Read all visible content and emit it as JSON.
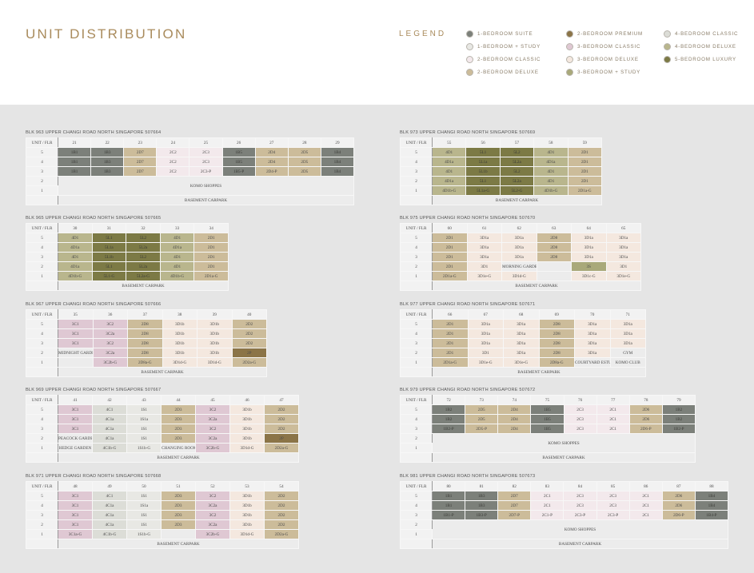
{
  "page": {
    "title": "UNIT DISTRIBUTION"
  },
  "legend": {
    "label": "LEGEND",
    "items": [
      {
        "label": "1-BEDROOM SUITE",
        "color": "#7c807a"
      },
      {
        "label": "1-BEDROOM + STUDY",
        "color": "#e8e8e4"
      },
      {
        "label": "2-BEDROOM CLASSIC",
        "color": "#f3e9ec"
      },
      {
        "label": "2-BEDROOM DELUXE",
        "color": "#ccbc9a"
      },
      {
        "label": "2-BEDROOM PREMIUM",
        "color": "#8b7447"
      },
      {
        "label": "3-BEDROOM CLASSIC",
        "color": "#dfc8d3"
      },
      {
        "label": "3-BEDROOM DELUXE",
        "color": "#f4e8df"
      },
      {
        "label": "3-BEDROOM + STUDY",
        "color": "#a9a97a"
      },
      {
        "label": "4-BEDROOM CLASSIC",
        "color": "#dcddd7"
      },
      {
        "label": "4-BEDROOM DELUXE",
        "color": "#b9b68d"
      },
      {
        "label": "5-BEDROOM LUXURY",
        "color": "#7c7a45"
      }
    ]
  },
  "header_label": "UNIT / FLR",
  "blocks": [
    {
      "title": "BLK 963 UPPER CHANGI ROAD NORTH SINGAPORE 507664",
      "units": [
        "21",
        "22",
        "23",
        "24",
        "25",
        "26",
        "27",
        "28",
        "29"
      ],
      "rows": [
        {
          "floor": "5",
          "cells": [
            "1B1",
            "1B3",
            "2D7",
            "2C2",
            "2C3",
            "1B5",
            "2D4",
            "2D5",
            "1B4"
          ]
        },
        {
          "floor": "4",
          "cells": [
            "1B1",
            "1B3",
            "2D7",
            "2C2",
            "2C3",
            "1B5",
            "2D4",
            "2D5",
            "1B4"
          ]
        },
        {
          "floor": "3",
          "cells": [
            "1B1",
            "1B3",
            "2D7",
            "2C2",
            "2C3-P",
            "1B5-P",
            "2D4-P",
            "2D5",
            "1B4"
          ]
        }
      ],
      "shoppes": {
        "floors": [
          "2",
          "1"
        ],
        "label": "KOMO SHOPPES"
      },
      "carpark": "BASEMENT CARPARK"
    },
    {
      "title": "BLK 965 UPPER CHANGI ROAD NORTH SINGAPORE 507665",
      "units": [
        "30",
        "31",
        "32",
        "33",
        "34"
      ],
      "rows": [
        {
          "floor": "5",
          "cells": [
            "4D1",
            "5L1",
            "5L2",
            "4D1",
            "2D1"
          ]
        },
        {
          "floor": "4",
          "cells": [
            "4D1a",
            "5L1a",
            "5L2a",
            "4D1a",
            "2D1"
          ]
        },
        {
          "floor": "3",
          "cells": [
            "4D1",
            "5L1b",
            "5L2",
            "4D1",
            "2D1"
          ]
        },
        {
          "floor": "2",
          "cells": [
            "4D1a",
            "5L1",
            "5L2a",
            "4D1",
            "2D1"
          ]
        },
        {
          "floor": "1",
          "cells": [
            "4D1b-G",
            "5L1-G",
            "5L2a-G",
            "4D1b-G",
            "2D1a-G"
          ]
        }
      ],
      "carpark": "BASEMENT CARPARK"
    },
    {
      "title": "BLK 967 UPPER CHANGI ROAD NORTH SINGAPORE 507666",
      "units": [
        "35",
        "36",
        "37",
        "38",
        "39",
        "40"
      ],
      "rows": [
        {
          "floor": "5",
          "cells": [
            "3C1",
            "3C2",
            "2D8",
            "3D1b",
            "3D1b",
            "2D2"
          ]
        },
        {
          "floor": "4",
          "cells": [
            "3C1",
            "3C2a",
            "2D8",
            "3D1b",
            "3D1b",
            "2D2"
          ]
        },
        {
          "floor": "3",
          "cells": [
            "3C1",
            "3C2",
            "2D8",
            "3D1b",
            "3D1b",
            "2D2"
          ]
        },
        {
          "floor": "2",
          "cells": [
            "MIDNIGHT GARDEN",
            "3C2a",
            "2D8",
            "3D1b",
            "3D1b",
            "2P"
          ]
        },
        {
          "floor": "1",
          "cells": [
            "",
            "3C2b-G",
            "2D8a-G",
            "3D1d-G",
            "3D1d-G",
            "2D2a-G"
          ]
        }
      ],
      "carpark": "BASEMENT CARPARK"
    },
    {
      "title": "BLK 969 UPPER CHANGI ROAD NORTH SINGAPORE 507667",
      "units": [
        "41",
        "42",
        "43",
        "44",
        "45",
        "46",
        "47"
      ],
      "rows": [
        {
          "floor": "5",
          "cells": [
            "3C1",
            "4C1",
            "1S1",
            "2D3",
            "3C2",
            "3D1b",
            "2D2"
          ]
        },
        {
          "floor": "4",
          "cells": [
            "3C1",
            "4C1a",
            "1S1a",
            "2D3",
            "3C2a",
            "3D1b",
            "2D2"
          ]
        },
        {
          "floor": "3",
          "cells": [
            "3C1",
            "4C1a",
            "1S1",
            "2D3",
            "3C2",
            "3D1b",
            "2D2"
          ]
        },
        {
          "floor": "2",
          "cells": [
            "PEACOCK GARDEN",
            "4C1a",
            "1S1",
            "2D3",
            "3C2a",
            "3D1b",
            "2P"
          ]
        },
        {
          "floor": "1",
          "cells": [
            "HEDGE GARDEN",
            "4C1b-G",
            "1S1b-G",
            "CHANGING ROOM",
            "3C2b-G",
            "3D1d-G",
            "2D2a-G"
          ]
        }
      ],
      "carpark": "BASEMENT CARPARK"
    },
    {
      "title": "BLK 971 UPPER CHANGI ROAD NORTH SINGAPORE 507668",
      "units": [
        "48",
        "49",
        "50",
        "51",
        "52",
        "53",
        "54"
      ],
      "rows": [
        {
          "floor": "5",
          "cells": [
            "3C1",
            "4C1",
            "1S1",
            "2D3",
            "3C2",
            "3D1b",
            "2D2"
          ]
        },
        {
          "floor": "4",
          "cells": [
            "3C1",
            "4C1a",
            "1S1a",
            "2D3",
            "3C2a",
            "3D1b",
            "2D2"
          ]
        },
        {
          "floor": "3",
          "cells": [
            "3C1",
            "4C1a",
            "1S1",
            "2D3",
            "3C2",
            "3D1b",
            "2D2"
          ]
        },
        {
          "floor": "2",
          "cells": [
            "3C1",
            "4C1a",
            "1S1",
            "2D3",
            "3C2a",
            "3D1b",
            "2D2"
          ]
        },
        {
          "floor": "1",
          "cells": [
            "3C1a-G",
            "4C1b-G",
            "1S1b-G",
            "",
            "3C2b-G",
            "3D1d-G",
            "2D2a-G"
          ]
        }
      ],
      "carpark": "BASEMENT CARPARK"
    },
    {
      "title": "BLK 973 UPPER CHANGI ROAD NORTH SINGAPORE 507669",
      "units": [
        "55",
        "56",
        "57",
        "58",
        "59"
      ],
      "rows": [
        {
          "floor": "5",
          "cells": [
            "4D1",
            "5L1",
            "5L2",
            "4D1",
            "2D1"
          ]
        },
        {
          "floor": "4",
          "cells": [
            "4D1a",
            "5L1a",
            "5L2a",
            "4D1a",
            "2D1"
          ]
        },
        {
          "floor": "3",
          "cells": [
            "4D1",
            "5L1b",
            "5L2",
            "4D1",
            "2D1"
          ]
        },
        {
          "floor": "2",
          "cells": [
            "4D1a",
            "5L1",
            "5L2a",
            "4D1",
            "2D1"
          ]
        },
        {
          "floor": "1",
          "cells": [
            "4D1b-G",
            "5L1a-G",
            "5L2-G",
            "4D1b-G",
            "2D1a-G"
          ]
        }
      ],
      "carpark": "BASEMENT CARPARK"
    },
    {
      "title": "BLK 975 UPPER CHANGI ROAD NORTH SINGAPORE 507670",
      "units": [
        "60",
        "61",
        "62",
        "63",
        "64",
        "65"
      ],
      "rows": [
        {
          "floor": "5",
          "cells": [
            "2D1",
            "3D1a",
            "3D1a",
            "2D8",
            "3D1a",
            "3D1a"
          ]
        },
        {
          "floor": "4",
          "cells": [
            "2D1",
            "3D1a",
            "3D1a",
            "2D8",
            "3D1a",
            "3D1a"
          ]
        },
        {
          "floor": "3",
          "cells": [
            "2D1",
            "3D1a",
            "3D1a",
            "2D8",
            "3D1a",
            "3D1a"
          ]
        },
        {
          "floor": "2",
          "cells": [
            "2D1",
            "3D1",
            "MORNING GARDEN",
            "",
            "3S",
            "3D1"
          ]
        },
        {
          "floor": "1",
          "cells": [
            "2D1a-G",
            "3D1e-G",
            "3D1d-G",
            "",
            "3D1c-G",
            "3D1e-G"
          ]
        }
      ],
      "carpark": "BASEMENT CARPARK"
    },
    {
      "title": "BLK 977 UPPER CHANGI ROAD NORTH SINGAPORE 507671",
      "units": [
        "66",
        "67",
        "68",
        "69",
        "70",
        "71"
      ],
      "rows": [
        {
          "floor": "5",
          "cells": [
            "2D1",
            "3D1a",
            "3D1a",
            "2D8",
            "3D1a",
            "3D1a"
          ]
        },
        {
          "floor": "4",
          "cells": [
            "2D1",
            "3D1a",
            "3D1a",
            "2D8",
            "3D1a",
            "3D1a"
          ]
        },
        {
          "floor": "3",
          "cells": [
            "2D1",
            "3D1a",
            "3D1a",
            "2D8",
            "3D1a",
            "3D1a"
          ]
        },
        {
          "floor": "2",
          "cells": [
            "2D1",
            "3D1",
            "3D1a",
            "2D8",
            "3D1a",
            "GYM"
          ]
        },
        {
          "floor": "1",
          "cells": [
            "2D1a-G",
            "3D1e-G",
            "3D1e-G",
            "2D8a-G",
            "COURTYARD ESTUARY",
            "KOMO CLUB"
          ]
        }
      ],
      "carpark": "BASEMENT CARPARK"
    },
    {
      "title": "BLK 979 UPPER CHANGI ROAD NORTH SINGAPORE 507672",
      "units": [
        "72",
        "73",
        "74",
        "75",
        "76",
        "77",
        "78",
        "79"
      ],
      "rows": [
        {
          "floor": "5",
          "cells": [
            "1B2",
            "2D5",
            "2D4",
            "1B5",
            "2C3",
            "2C1",
            "2D6",
            "1B2"
          ]
        },
        {
          "floor": "4",
          "cells": [
            "1B2",
            "2D5",
            "2D4",
            "1B5",
            "2C3",
            "2C1",
            "2D6",
            "1B2"
          ]
        },
        {
          "floor": "3",
          "cells": [
            "1B2-P",
            "2D5-P",
            "2D4",
            "1B5",
            "2C3",
            "2C1",
            "2D6-P",
            "1B2-P"
          ]
        }
      ],
      "shoppes": {
        "floors": [
          "2",
          "1"
        ],
        "label": "KOMO SHOPPES"
      },
      "carpark": "BASEMENT CARPARK"
    },
    {
      "title": "BLK 981 UPPER CHANGI ROAD NORTH SINGAPORE 507673",
      "units": [
        "80",
        "81",
        "82",
        "83",
        "84",
        "85",
        "86",
        "87",
        "88"
      ],
      "rows": [
        {
          "floor": "5",
          "cells": [
            "1B1",
            "1B3",
            "2D7",
            "2C1",
            "2C3",
            "2C3",
            "2C1",
            "2D6",
            "1B4"
          ]
        },
        {
          "floor": "4",
          "cells": [
            "1B1",
            "1B3",
            "2D7",
            "2C1",
            "2C3",
            "2C3",
            "2C1",
            "2D6",
            "1B4"
          ]
        },
        {
          "floor": "3",
          "cells": [
            "1B1-P",
            "1B3-P",
            "2D7-P",
            "2C1-P",
            "2C3-P",
            "2C3-P",
            "2C1",
            "2D6-P",
            "1B4-P"
          ]
        }
      ],
      "shoppes": {
        "floors": [
          "2",
          "1"
        ],
        "label": "KOMO SHOPPES"
      },
      "carpark": "BASEMENT CARPARK"
    }
  ]
}
